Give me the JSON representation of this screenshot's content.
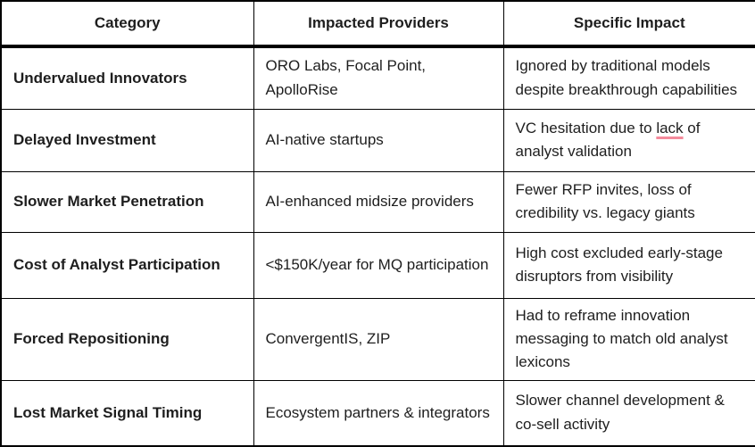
{
  "colors": {
    "border": "#000000",
    "text": "#1e1e1e",
    "spellcheck_underline": "#f48a9b",
    "background": "#ffffff"
  },
  "table": {
    "headers": {
      "category": "Category",
      "providers": "Impacted Providers",
      "impact": "Specific Impact"
    },
    "rows": [
      {
        "category": "Undervalued Innovators",
        "providers": "ORO Labs, Focal Point, ApolloRise",
        "impact": "Ignored by traditional models despite breakthrough capabilities"
      },
      {
        "category": "Delayed Investment",
        "providers": "AI-native startups",
        "impact_prefix": "VC hesitation due to ",
        "impact_marked": "lack",
        "impact_suffix": " of analyst validation"
      },
      {
        "category": "Slower Market Penetration",
        "providers": "AI-enhanced midsize providers",
        "impact": "Fewer RFP invites, loss of credibility vs. legacy giants"
      },
      {
        "category": "Cost of Analyst Participation",
        "providers": "<$150K/year for MQ participation",
        "impact": "High cost excluded early-stage disruptors from visibility"
      },
      {
        "category": "Forced Repositioning",
        "providers": "ConvergentIS, ZIP",
        "impact": "Had to reframe innovation messaging to match old analyst lexicons"
      },
      {
        "category": "Lost Market Signal Timing",
        "providers": "Ecosystem partners & integrators",
        "impact": "Slower channel development & co-sell activity"
      }
    ]
  }
}
